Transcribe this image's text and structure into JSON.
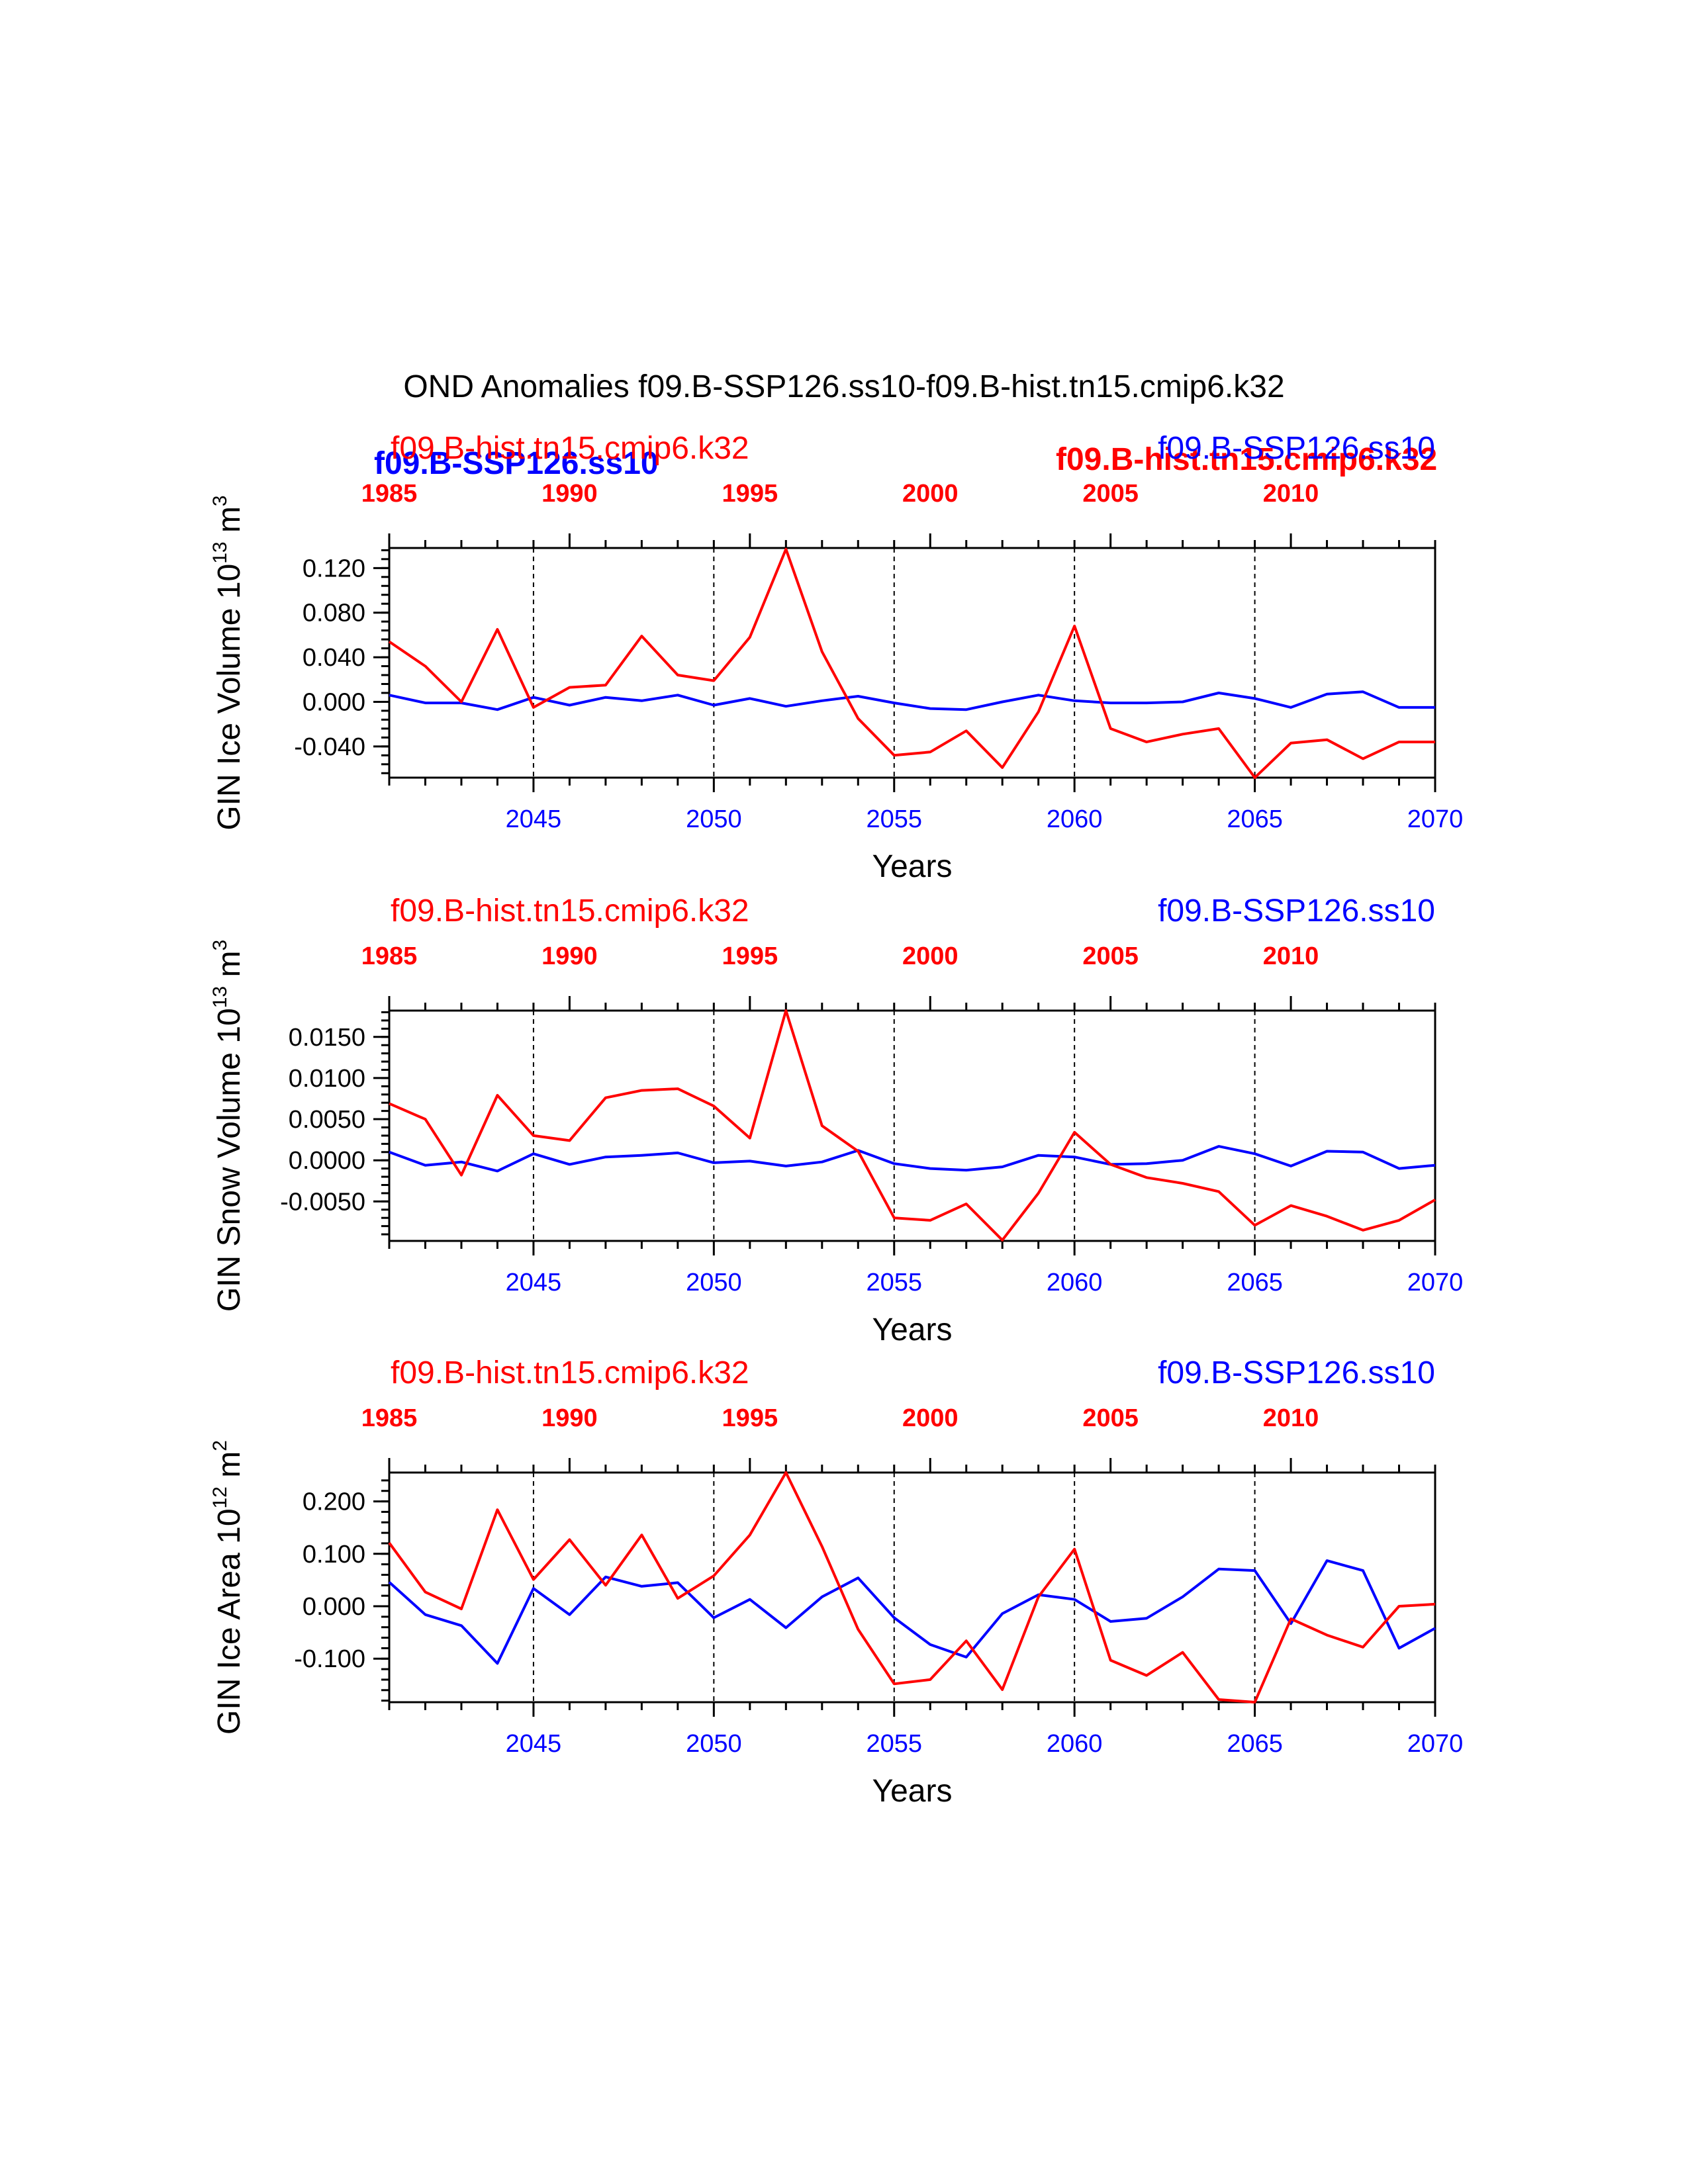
{
  "title": "OND Anomalies f09.B-SSP126.ss10-f09.B-hist.tn15.cmip6.k32",
  "colors": {
    "hist": "#ff0000",
    "ssp": "#0000ff",
    "axis": "#000000"
  },
  "overlay_labels": {
    "blue": "f09.B-SSP126.ss10",
    "red": "f09.B-hist.tn15.cmip6.k32"
  },
  "chart_data": [
    {
      "type": "line",
      "ylabel": "GIN Ice Volume 10",
      "ylabel_exp": "13",
      "ylabel_unit": " m",
      "ylabel_unit_exp": "3",
      "xlabel": "Years",
      "top_left_label": "f09.B-hist.tn15.cmip6.k32",
      "top_right_label": "f09.B-SSP126.ss10",
      "x_bottom": [
        2041,
        2042,
        2043,
        2044,
        2045,
        2046,
        2047,
        2048,
        2049,
        2050,
        2051,
        2052,
        2053,
        2054,
        2055,
        2056,
        2057,
        2058,
        2059,
        2060,
        2061,
        2062,
        2063,
        2064,
        2065,
        2066,
        2067,
        2068,
        2069,
        2070
      ],
      "x_top": [
        1985,
        1986,
        1987,
        1988,
        1989,
        1990,
        1991,
        1992,
        1993,
        1994,
        1995,
        1996,
        1997,
        1998,
        1999,
        2000,
        2001,
        2002,
        2003,
        2004,
        2005,
        2006,
        2007,
        2008,
        2009,
        2010,
        2011,
        2012,
        2013,
        2014
      ],
      "xlim_bottom": [
        2041,
        2070
      ],
      "xlim_top": [
        1985,
        2014
      ],
      "bottom_ticks": [
        "2045",
        "2050",
        "2055",
        "2060",
        "2065",
        "2070"
      ],
      "top_ticks": [
        "1985",
        "1990",
        "1995",
        "2000",
        "2005",
        "2010"
      ],
      "ylim": [
        -0.068,
        0.138
      ],
      "ytick_values": [
        0.12,
        0.08,
        0.04,
        0.0,
        -0.04
      ],
      "ytick_labels": [
        "0.120",
        "0.080",
        "0.040",
        "0.000",
        "-0.040"
      ],
      "yminor_step": 0.008,
      "vlines_bottom": [
        2045,
        2050,
        2055,
        2060,
        2065
      ],
      "series": [
        {
          "name": "f09.B-SSP126.ss10",
          "axis": "bottom",
          "color": "#0000ff",
          "values": [
            0.006,
            -0.001,
            -0.001,
            -0.007,
            0.004,
            -0.003,
            0.004,
            0.001,
            0.006,
            -0.003,
            0.003,
            -0.004,
            0.001,
            0.005,
            -0.001,
            -0.006,
            -0.007,
            0.0,
            0.006,
            0.001,
            -0.001,
            -0.001,
            0.0,
            0.008,
            0.003,
            -0.005,
            0.007,
            0.009,
            -0.005,
            -0.005
          ]
        },
        {
          "name": "f09.B-hist.tn15.cmip6.k32",
          "axis": "top",
          "color": "#ff0000",
          "values": [
            0.054,
            0.032,
            0.0,
            0.065,
            -0.005,
            0.013,
            0.015,
            0.059,
            0.024,
            0.019,
            0.058,
            0.137,
            0.045,
            -0.015,
            -0.048,
            -0.045,
            -0.026,
            -0.059,
            -0.009,
            0.068,
            -0.024,
            -0.036,
            -0.029,
            -0.024,
            -0.068,
            -0.037,
            -0.034,
            -0.051,
            -0.036,
            -0.036
          ]
        }
      ]
    },
    {
      "type": "line",
      "ylabel": "GIN Snow Volume 10",
      "ylabel_exp": "13",
      "ylabel_unit": " m",
      "ylabel_unit_exp": "3",
      "xlabel": "Years",
      "top_left_label": "f09.B-hist.tn15.cmip6.k32",
      "top_right_label": "f09.B-SSP126.ss10",
      "x_bottom": [
        2041,
        2042,
        2043,
        2044,
        2045,
        2046,
        2047,
        2048,
        2049,
        2050,
        2051,
        2052,
        2053,
        2054,
        2055,
        2056,
        2057,
        2058,
        2059,
        2060,
        2061,
        2062,
        2063,
        2064,
        2065,
        2066,
        2067,
        2068,
        2069,
        2070
      ],
      "x_top": [
        1985,
        1986,
        1987,
        1988,
        1989,
        1990,
        1991,
        1992,
        1993,
        1994,
        1995,
        1996,
        1997,
        1998,
        1999,
        2000,
        2001,
        2002,
        2003,
        2004,
        2005,
        2006,
        2007,
        2008,
        2009,
        2010,
        2011,
        2012,
        2013,
        2014
      ],
      "xlim_bottom": [
        2041,
        2070
      ],
      "xlim_top": [
        1985,
        2014
      ],
      "bottom_ticks": [
        "2045",
        "2050",
        "2055",
        "2060",
        "2065",
        "2070"
      ],
      "top_ticks": [
        "1985",
        "1990",
        "1995",
        "2000",
        "2005",
        "2010"
      ],
      "ylim": [
        -0.0098,
        0.0182
      ],
      "ytick_values": [
        0.015,
        0.01,
        0.005,
        0.0,
        -0.005
      ],
      "ytick_labels": [
        "0.0150",
        "0.0100",
        "0.0050",
        "0.0000",
        "-0.0050"
      ],
      "yminor_step": 0.001,
      "vlines_bottom": [
        2045,
        2050,
        2055,
        2060,
        2065
      ],
      "series": [
        {
          "name": "f09.B-SSP126.ss10",
          "axis": "bottom",
          "color": "#0000ff",
          "values": [
            0.001,
            -0.0006,
            -0.0002,
            -0.0013,
            0.0008,
            -0.0005,
            0.0004,
            0.0006,
            0.0009,
            -0.0003,
            -0.0001,
            -0.0007,
            -0.0002,
            0.0012,
            -0.0004,
            -0.001,
            -0.0012,
            -0.0008,
            0.0006,
            0.0004,
            -0.0005,
            -0.0004,
            0.0,
            0.0017,
            0.0008,
            -0.0007,
            0.0011,
            0.001,
            -0.001,
            -0.0006
          ]
        },
        {
          "name": "f09.B-hist.tn15.cmip6.k32",
          "axis": "top",
          "color": "#ff0000",
          "values": [
            0.0069,
            0.005,
            -0.0018,
            0.0079,
            0.003,
            0.0024,
            0.0076,
            0.0085,
            0.0087,
            0.0066,
            0.0027,
            0.0182,
            0.0042,
            0.0011,
            -0.007,
            -0.0073,
            -0.0053,
            -0.0097,
            -0.004,
            0.0034,
            -0.0005,
            -0.0021,
            -0.0028,
            -0.0038,
            -0.0079,
            -0.0055,
            -0.0068,
            -0.0085,
            -0.0073,
            -0.0048
          ]
        }
      ]
    },
    {
      "type": "line",
      "ylabel": "GIN Ice Area 10",
      "ylabel_exp": "12",
      "ylabel_unit": " m",
      "ylabel_unit_exp": "2",
      "xlabel": "Years",
      "top_left_label": "f09.B-hist.tn15.cmip6.k32",
      "top_right_label": "f09.B-SSP126.ss10",
      "x_bottom": [
        2041,
        2042,
        2043,
        2044,
        2045,
        2046,
        2047,
        2048,
        2049,
        2050,
        2051,
        2052,
        2053,
        2054,
        2055,
        2056,
        2057,
        2058,
        2059,
        2060,
        2061,
        2062,
        2063,
        2064,
        2065,
        2066,
        2067,
        2068,
        2069,
        2070
      ],
      "x_top": [
        1985,
        1986,
        1987,
        1988,
        1989,
        1990,
        1991,
        1992,
        1993,
        1994,
        1995,
        1996,
        1997,
        1998,
        1999,
        2000,
        2001,
        2002,
        2003,
        2004,
        2005,
        2006,
        2007,
        2008,
        2009,
        2010,
        2011,
        2012,
        2013,
        2014
      ],
      "xlim_bottom": [
        2041,
        2070
      ],
      "xlim_top": [
        1985,
        2014
      ],
      "bottom_ticks": [
        "2045",
        "2050",
        "2055",
        "2060",
        "2065",
        "2070"
      ],
      "top_ticks": [
        "1985",
        "1990",
        "1995",
        "2000",
        "2005",
        "2010"
      ],
      "ylim": [
        -0.183,
        0.255
      ],
      "ytick_values": [
        0.2,
        0.1,
        0.0,
        -0.1
      ],
      "ytick_labels": [
        "0.200",
        "0.100",
        "0.000",
        "-0.100"
      ],
      "yminor_step": 0.02,
      "vlines_bottom": [
        2045,
        2050,
        2055,
        2060,
        2065
      ],
      "series": [
        {
          "name": "f09.B-SSP126.ss10",
          "axis": "bottom",
          "color": "#0000ff",
          "values": [
            0.046,
            -0.016,
            -0.037,
            -0.109,
            0.034,
            -0.016,
            0.056,
            0.038,
            0.045,
            -0.022,
            0.013,
            -0.041,
            0.018,
            0.054,
            -0.022,
            -0.073,
            -0.097,
            -0.014,
            0.022,
            0.013,
            -0.029,
            -0.023,
            0.018,
            0.071,
            0.068,
            -0.033,
            0.087,
            0.068,
            -0.08,
            -0.042
          ]
        },
        {
          "name": "f09.B-hist.tn15.cmip6.k32",
          "axis": "top",
          "color": "#ff0000",
          "values": [
            0.121,
            0.027,
            -0.005,
            0.184,
            0.051,
            0.127,
            0.04,
            0.136,
            0.015,
            0.058,
            0.136,
            0.255,
            0.114,
            -0.044,
            -0.148,
            -0.14,
            -0.066,
            -0.159,
            0.018,
            0.109,
            -0.103,
            -0.132,
            -0.088,
            -0.178,
            -0.183,
            -0.024,
            -0.055,
            -0.078,
            0.0,
            0.004
          ]
        }
      ]
    }
  ]
}
